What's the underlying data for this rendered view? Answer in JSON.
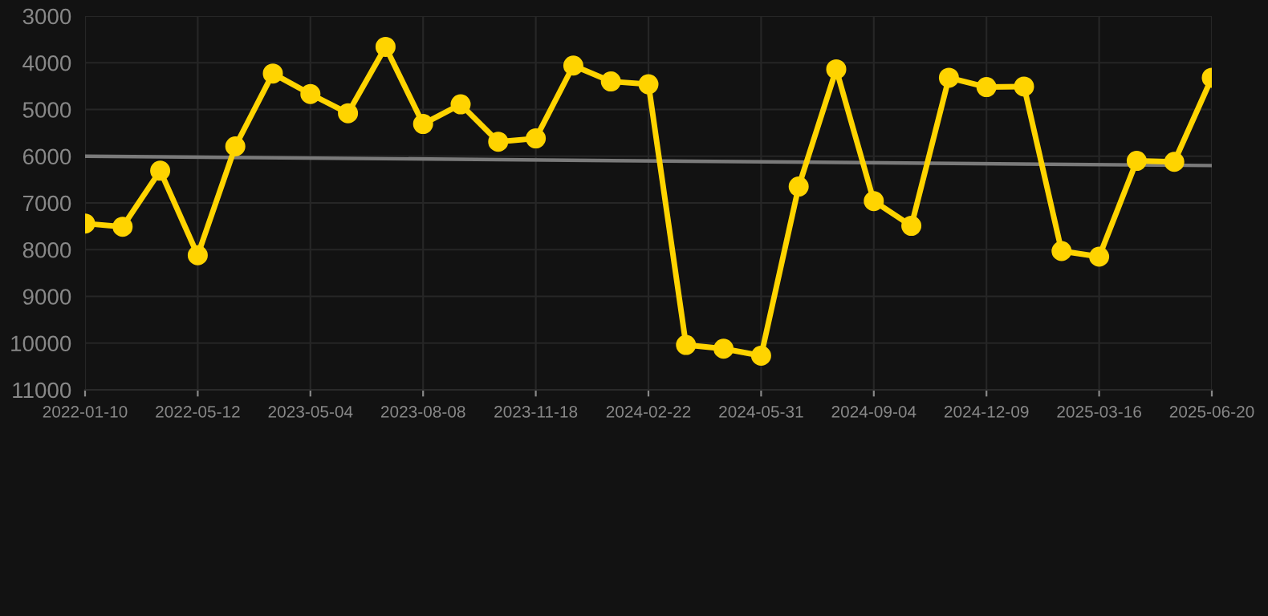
{
  "chart_data": {
    "type": "line",
    "categories": [
      "2022-01-10",
      null,
      null,
      "2022-05-12",
      null,
      null,
      "2023-05-04",
      null,
      null,
      "2023-08-08",
      null,
      null,
      "2023-11-18",
      null,
      null,
      "2024-02-22",
      null,
      null,
      "2024-05-31",
      null,
      null,
      "2024-09-04",
      null,
      null,
      "2024-12-09",
      null,
      null,
      "2025-03-16",
      null,
      null,
      "2025-06-20"
    ],
    "series": [
      {
        "color": "#ffd400",
        "marker": "circle",
        "values": [
          7440,
          7510,
          6310,
          8120,
          5790,
          4230,
          4670,
          5080,
          3660,
          5310,
          4890,
          5690,
          5620,
          4060,
          4400,
          4460,
          10040,
          10120,
          10270,
          6650,
          4140,
          6960,
          7490,
          4320,
          4520,
          4510,
          8030,
          8150,
          6100,
          6120,
          4320
        ]
      },
      {
        "color": "#7a7a7a",
        "marker": "none",
        "values": [
          6000,
          null,
          null,
          null,
          null,
          null,
          null,
          null,
          null,
          null,
          null,
          null,
          null,
          null,
          null,
          null,
          null,
          null,
          null,
          null,
          null,
          null,
          null,
          null,
          null,
          null,
          null,
          null,
          null,
          null,
          6200
        ]
      }
    ],
    "ylim": [
      11000,
      3000
    ],
    "yticks": [
      3000,
      4000,
      5000,
      6000,
      7000,
      8000,
      9000,
      10000,
      11000
    ],
    "grid": true,
    "line_style": "solid"
  }
}
